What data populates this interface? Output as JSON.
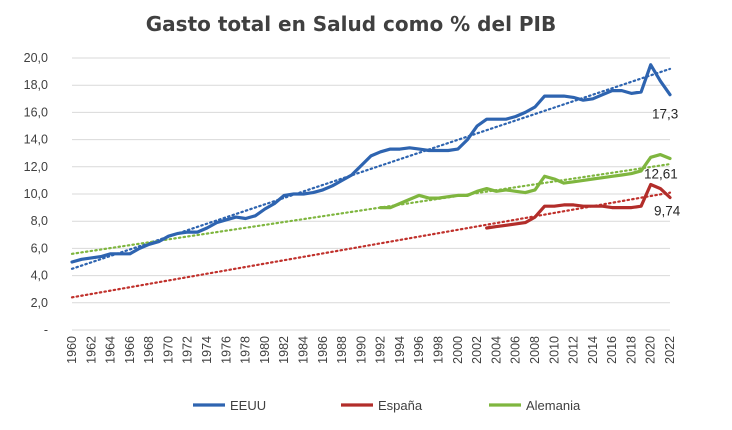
{
  "chart_data": {
    "type": "line",
    "title": "Gasto total en Salud como % del PIB",
    "xlabel": "",
    "ylabel": "",
    "ylim": [
      0,
      20
    ],
    "y_ticks": [
      0,
      2,
      4,
      6,
      8,
      10,
      12,
      14,
      16,
      18,
      20
    ],
    "y_tick_labels": [
      "-",
      "2,0",
      "4,0",
      "6,0",
      "8,0",
      "10,0",
      "12,0",
      "14,0",
      "16,0",
      "18,0",
      "20,0"
    ],
    "x_range": [
      1960,
      2022
    ],
    "x_tick_labels": [
      "1960",
      "1962",
      "1964",
      "1966",
      "1968",
      "1970",
      "1972",
      "1974",
      "1976",
      "1978",
      "1980",
      "1982",
      "1984",
      "1986",
      "1988",
      "1990",
      "1992",
      "1994",
      "1996",
      "1998",
      "2000",
      "2002",
      "2004",
      "2006",
      "2008",
      "2010",
      "2012",
      "2014",
      "2016",
      "2018",
      "2020",
      "2022"
    ],
    "grid": true,
    "legend_position": "bottom",
    "trendlines": "linear, dotted, one per series",
    "series": [
      {
        "name": "EEUU",
        "color": "#2e64b0",
        "trend_color": "#2e64b0",
        "x": [
          1960,
          1961,
          1962,
          1963,
          1964,
          1965,
          1966,
          1967,
          1968,
          1969,
          1970,
          1971,
          1972,
          1973,
          1974,
          1975,
          1976,
          1977,
          1978,
          1979,
          1980,
          1981,
          1982,
          1983,
          1984,
          1985,
          1986,
          1987,
          1988,
          1989,
          1990,
          1991,
          1992,
          1993,
          1994,
          1995,
          1996,
          1997,
          1998,
          1999,
          2000,
          2001,
          2002,
          2003,
          2004,
          2005,
          2006,
          2007,
          2008,
          2009,
          2010,
          2011,
          2012,
          2013,
          2014,
          2015,
          2016,
          2017,
          2018,
          2019,
          2020,
          2021,
          2022
        ],
        "values": [
          5.0,
          5.2,
          5.3,
          5.4,
          5.6,
          5.6,
          5.6,
          6.0,
          6.3,
          6.5,
          6.9,
          7.1,
          7.2,
          7.2,
          7.5,
          7.9,
          8.1,
          8.3,
          8.2,
          8.4,
          8.9,
          9.3,
          9.9,
          10.0,
          10.0,
          10.1,
          10.3,
          10.6,
          11.0,
          11.4,
          12.1,
          12.8,
          13.1,
          13.3,
          13.3,
          13.4,
          13.3,
          13.2,
          13.2,
          13.2,
          13.3,
          14.0,
          15.0,
          15.5,
          15.5,
          15.5,
          15.7,
          16.0,
          16.4,
          17.2,
          17.2,
          17.2,
          17.1,
          16.9,
          17.0,
          17.3,
          17.6,
          17.6,
          17.4,
          17.5,
          19.5,
          18.3,
          17.3
        ],
        "end_label": "17,3",
        "trend": [
          4.5,
          19.2
        ]
      },
      {
        "name": "España",
        "color": "#b22d2a",
        "trend_color": "#c0312c",
        "x": [
          2003,
          2004,
          2005,
          2006,
          2007,
          2008,
          2009,
          2010,
          2011,
          2012,
          2013,
          2014,
          2015,
          2016,
          2017,
          2018,
          2019,
          2020,
          2021,
          2022
        ],
        "values": [
          7.5,
          7.6,
          7.7,
          7.8,
          7.9,
          8.3,
          9.1,
          9.1,
          9.2,
          9.2,
          9.1,
          9.1,
          9.1,
          9.0,
          9.0,
          9.0,
          9.1,
          10.7,
          10.4,
          9.74
        ],
        "end_label": "9,74",
        "trend": [
          2.4,
          10.1
        ]
      },
      {
        "name": "Alemania",
        "color": "#7fb63f",
        "trend_color": "#7fb63f",
        "x": [
          1992,
          1993,
          1994,
          1995,
          1996,
          1997,
          1998,
          1999,
          2000,
          2001,
          2002,
          2003,
          2004,
          2005,
          2006,
          2007,
          2008,
          2009,
          2010,
          2011,
          2012,
          2013,
          2014,
          2015,
          2016,
          2017,
          2018,
          2019,
          2020,
          2021,
          2022
        ],
        "values": [
          9.0,
          9.0,
          9.3,
          9.6,
          9.9,
          9.7,
          9.7,
          9.8,
          9.9,
          9.9,
          10.2,
          10.4,
          10.2,
          10.3,
          10.2,
          10.1,
          10.3,
          11.3,
          11.1,
          10.8,
          10.9,
          11.0,
          11.1,
          11.2,
          11.3,
          11.4,
          11.5,
          11.7,
          12.7,
          12.9,
          12.61
        ],
        "end_label": "12,61",
        "trend": [
          5.6,
          12.2
        ]
      }
    ]
  }
}
